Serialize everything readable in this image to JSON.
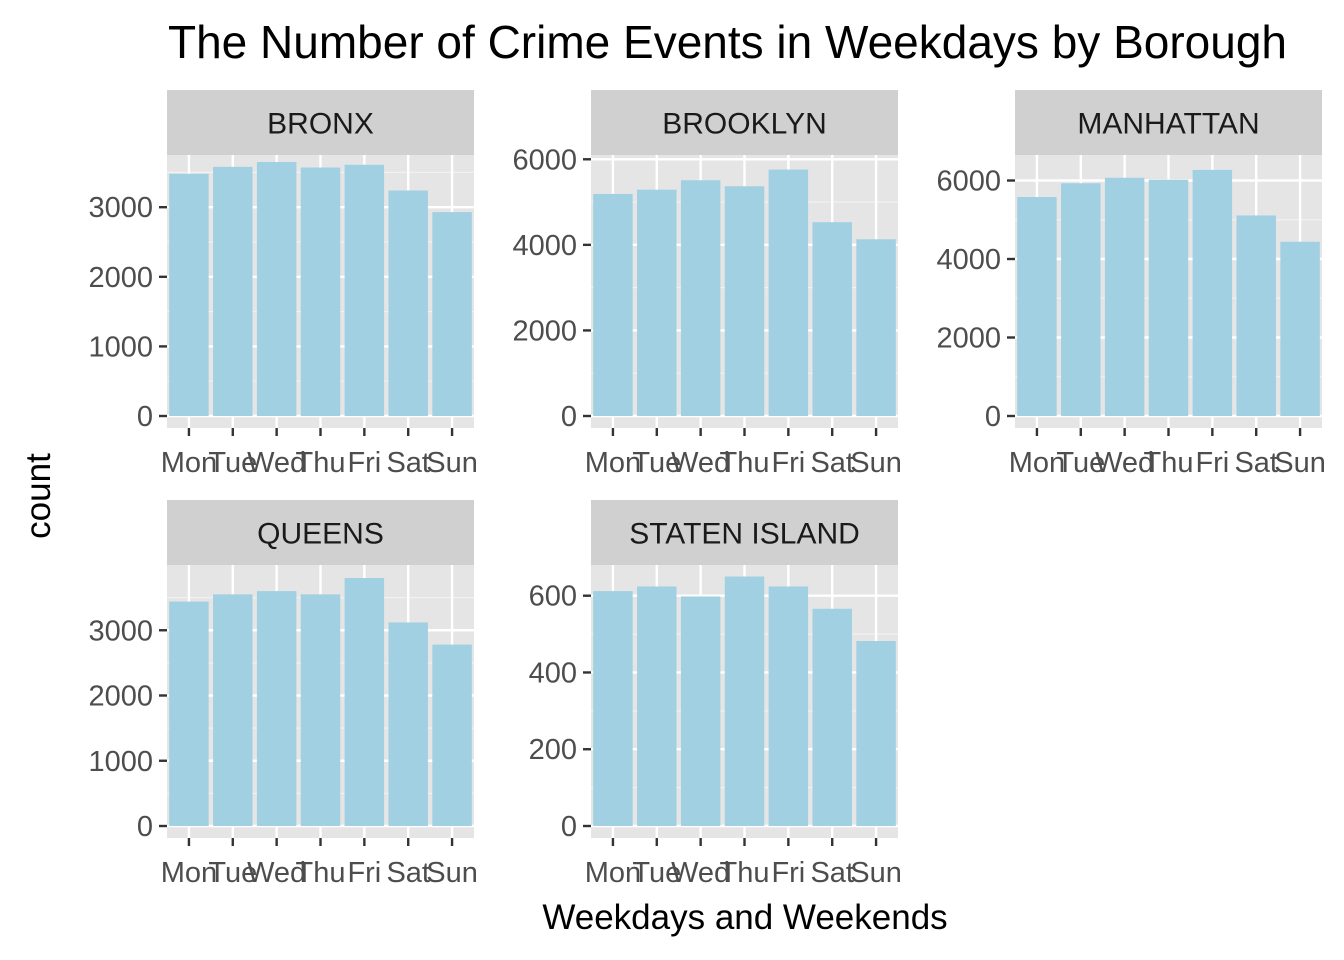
{
  "chart_data": {
    "type": "bar",
    "title": "The Number of Crime Events in Weekdays by Borough",
    "xlabel": "Weekdays and Weekends",
    "ylabel": "count",
    "categories": [
      "Mon",
      "Tue",
      "Wed",
      "Thu",
      "Fri",
      "Sat",
      "Sun"
    ],
    "bar_color": "#a1d0e2",
    "panel_background": "#e5e5e5",
    "strip_background": "#d0d0d0",
    "grid": true,
    "facets": [
      {
        "name": "BRONX",
        "values": [
          3480,
          3580,
          3650,
          3570,
          3610,
          3240,
          2930
        ],
        "ylim": [
          0,
          3750
        ],
        "yticks": [
          0,
          1000,
          2000,
          3000
        ]
      },
      {
        "name": "BROOKLYN",
        "values": [
          5190,
          5290,
          5510,
          5370,
          5760,
          4530,
          4130
        ],
        "ylim": [
          0,
          6100
        ],
        "yticks": [
          0,
          2000,
          4000,
          6000
        ]
      },
      {
        "name": "MANHATTAN",
        "values": [
          5580,
          5930,
          6070,
          6020,
          6270,
          5110,
          4440
        ],
        "ylim": [
          0,
          6650
        ],
        "yticks": [
          0,
          2000,
          4000,
          6000
        ]
      },
      {
        "name": "QUEENS",
        "values": [
          3440,
          3550,
          3600,
          3550,
          3800,
          3120,
          2780
        ],
        "ylim": [
          0,
          4000
        ],
        "yticks": [
          0,
          1000,
          2000,
          3000
        ]
      },
      {
        "name": "STATEN ISLAND",
        "values": [
          612,
          624,
          598,
          650,
          624,
          566,
          482
        ],
        "ylim": [
          0,
          680
        ],
        "yticks": [
          0,
          200,
          400,
          600
        ]
      }
    ]
  }
}
